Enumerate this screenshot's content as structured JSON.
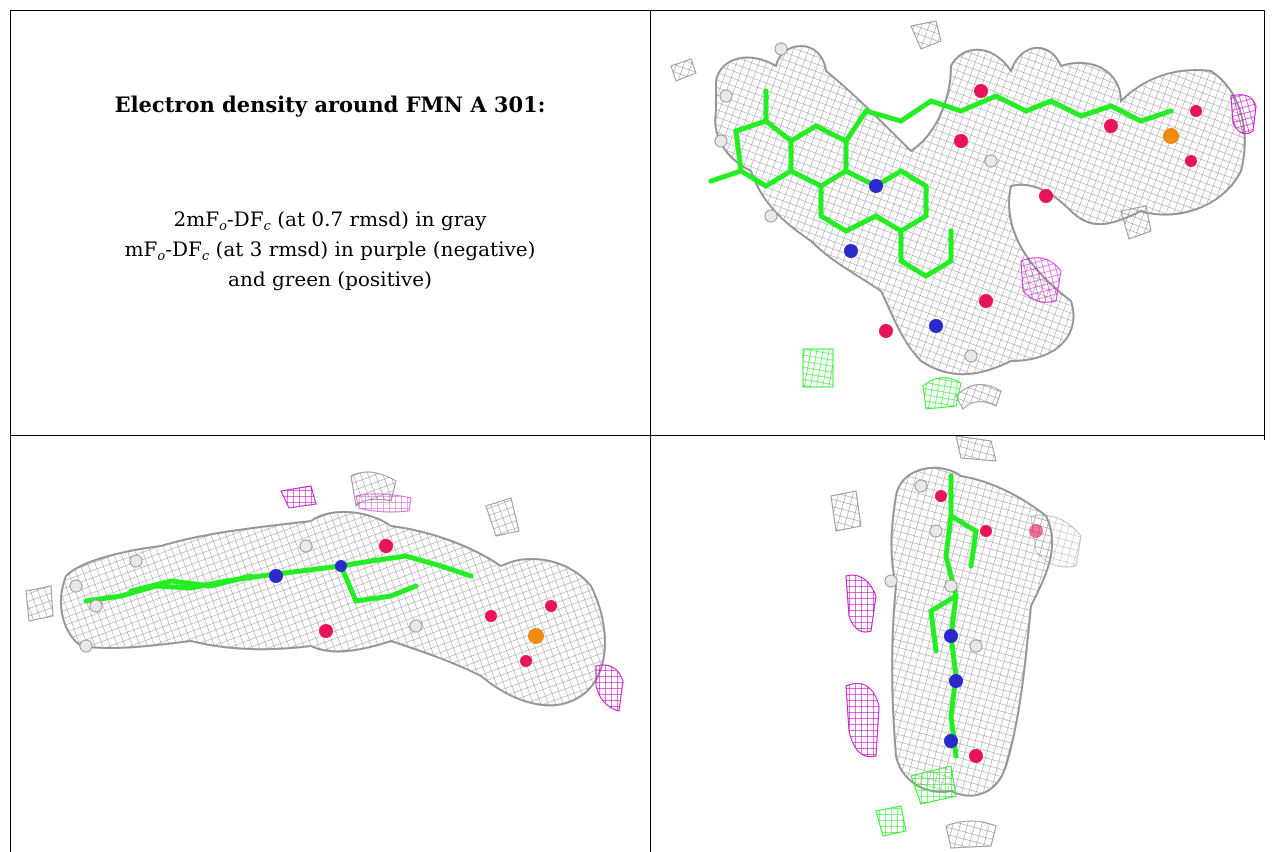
{
  "caption": {
    "title": "Electron density around FMN A 301:",
    "line1": {
      "a": "2mF",
      "a_sub": "o",
      "b": "-DF",
      "b_sub": "c",
      "rest": " (at 0.7 rmsd) in gray"
    },
    "line2": {
      "a": "mF",
      "a_sub": "o",
      "b": "-DF",
      "b_sub": "c",
      "rest": " (at 3 rmsd) in purple (negative)"
    },
    "line3": "and green (positive)"
  },
  "colors": {
    "mesh_gray": "#9a9a9a",
    "carbon_green": "#22ee22",
    "oxygen_red": "#e8145a",
    "nitrogen_blue": "#2a2acc",
    "phosphorus_orange": "#f08c14",
    "negative_purple": "#cc11cc",
    "positive_green": "#33ee33",
    "hydrogen_white": "#e8e8e8"
  },
  "panels": [
    {
      "view": "top-right",
      "icon": "density-view-face-on"
    },
    {
      "view": "bottom-left",
      "icon": "density-view-edge-on"
    },
    {
      "view": "bottom-right",
      "icon": "density-view-end-on"
    }
  ]
}
